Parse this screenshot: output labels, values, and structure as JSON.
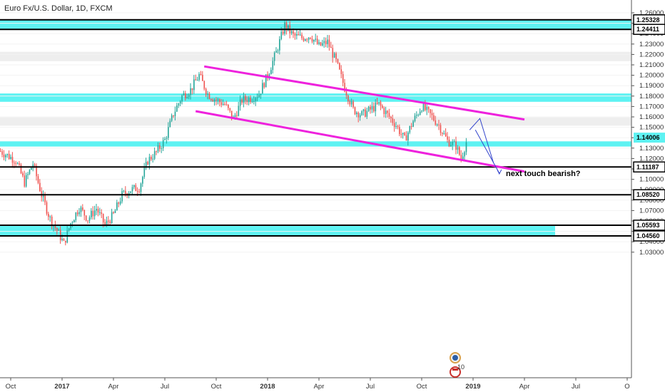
{
  "title": "Euro Fx/U.S. Dollar, 1D, FXCM",
  "chart_data": {
    "type": "candlestick",
    "title": "Euro Fx/U.S. Dollar, 1D, FXCM",
    "ylim": [
      1.025,
      1.265
    ],
    "y_ticks": [
      1.26,
      1.25,
      1.24,
      1.23,
      1.22,
      1.21,
      1.2,
      1.19,
      1.18,
      1.17,
      1.16,
      1.15,
      1.14,
      1.13,
      1.12,
      1.11,
      1.1,
      1.09,
      1.08,
      1.07,
      1.06,
      1.05,
      1.04,
      1.03
    ],
    "x_ticks": [
      {
        "label": "Oct",
        "x": 0,
        "bold": false
      },
      {
        "label": "2017",
        "x": 3,
        "bold": true
      },
      {
        "label": "Apr",
        "x": 6,
        "bold": false
      },
      {
        "label": "Jul",
        "x": 9,
        "bold": false
      },
      {
        "label": "Oct",
        "x": 12,
        "bold": false
      },
      {
        "label": "2018",
        "x": 15,
        "bold": true
      },
      {
        "label": "Apr",
        "x": 18,
        "bold": false
      },
      {
        "label": "Jul",
        "x": 21,
        "bold": false
      },
      {
        "label": "Oct",
        "x": 24,
        "bold": false
      },
      {
        "label": "2019",
        "x": 27,
        "bold": true
      },
      {
        "label": "Apr",
        "x": 30,
        "bold": false
      },
      {
        "label": "Jul",
        "x": 33,
        "bold": false
      },
      {
        "label": "O",
        "x": 36,
        "bold": false
      }
    ],
    "price_path": [
      [
        -0.6,
        1.127
      ],
      [
        0.3,
        1.118
      ],
      [
        0.8,
        1.097
      ],
      [
        1.3,
        1.115
      ],
      [
        1.8,
        1.085
      ],
      [
        2.3,
        1.062
      ],
      [
        2.8,
        1.048
      ],
      [
        3.1,
        1.038
      ],
      [
        3.5,
        1.058
      ],
      [
        4.0,
        1.073
      ],
      [
        4.5,
        1.062
      ],
      [
        5.0,
        1.072
      ],
      [
        5.5,
        1.056
      ],
      [
        6.0,
        1.066
      ],
      [
        6.5,
        1.085
      ],
      [
        7.0,
        1.09
      ],
      [
        7.5,
        1.092
      ],
      [
        8.0,
        1.118
      ],
      [
        8.5,
        1.126
      ],
      [
        9.0,
        1.138
      ],
      [
        9.5,
        1.163
      ],
      [
        10.0,
        1.18
      ],
      [
        10.5,
        1.186
      ],
      [
        11.0,
        1.2
      ],
      [
        11.5,
        1.182
      ],
      [
        12.0,
        1.176
      ],
      [
        12.5,
        1.172
      ],
      [
        13.0,
        1.158
      ],
      [
        13.5,
        1.176
      ],
      [
        14.0,
        1.178
      ],
      [
        14.5,
        1.182
      ],
      [
        15.0,
        1.2
      ],
      [
        15.5,
        1.222
      ],
      [
        16.0,
        1.248
      ],
      [
        16.5,
        1.238
      ],
      [
        17.0,
        1.236
      ],
      [
        17.5,
        1.238
      ],
      [
        18.0,
        1.228
      ],
      [
        18.5,
        1.232
      ],
      [
        19.0,
        1.213
      ],
      [
        19.5,
        1.188
      ],
      [
        20.0,
        1.167
      ],
      [
        20.5,
        1.162
      ],
      [
        21.0,
        1.167
      ],
      [
        21.5,
        1.172
      ],
      [
        22.0,
        1.162
      ],
      [
        22.5,
        1.152
      ],
      [
        23.0,
        1.138
      ],
      [
        23.5,
        1.156
      ],
      [
        24.0,
        1.17
      ],
      [
        24.5,
        1.162
      ],
      [
        25.0,
        1.152
      ],
      [
        25.5,
        1.137
      ],
      [
        26.0,
        1.132
      ],
      [
        26.3,
        1.12
      ],
      [
        26.7,
        1.141
      ]
    ],
    "zones": [
      {
        "from": 1.2441,
        "to": 1.2533,
        "color": "#5ef2f2"
      },
      {
        "from": 1.2135,
        "to": 1.2225,
        "color": "#eeeeee"
      },
      {
        "from": 1.1745,
        "to": 1.1825,
        "color": "#5ef2f2"
      },
      {
        "from": 1.1515,
        "to": 1.1595,
        "color": "#eeeeee"
      },
      {
        "from": 1.1315,
        "to": 1.1365,
        "color": "#5ef2f2"
      },
      {
        "from": 1.0456,
        "to": 1.0559,
        "color": "#5ef2f2"
      }
    ],
    "levels": [
      1.25328,
      1.24411,
      1.11187,
      1.0852,
      1.05593,
      1.0456
    ],
    "current_price": 1.14006,
    "price_tags": [
      "1.25328",
      "1.24411",
      "1.14006",
      "1.11187",
      "1.08520",
      "1.05593",
      "1.04560"
    ],
    "channel_lines": [
      {
        "from": [
          11.3,
          1.2085
        ],
        "to": [
          30.0,
          1.1575
        ],
        "color": "#ee22dd"
      },
      {
        "from": [
          10.8,
          1.1655
        ],
        "to": [
          30.0,
          1.1075
        ],
        "color": "#ee22dd"
      }
    ],
    "projection_arrows": [
      {
        "points": [
          [
            26.8,
            1.1475
          ],
          [
            27.4,
            1.1585
          ],
          [
            28.2,
            1.1155
          ]
        ],
        "color": "#3344cc"
      }
    ],
    "annotation": "next touch bearish?",
    "event_badge": {
      "count": "10",
      "colors": [
        "#2d5ea6",
        "#c9302c"
      ]
    },
    "colors": {
      "up": "#26a69a",
      "down": "#ef5350",
      "channel": "#ee22dd",
      "arrow": "#3344cc",
      "price_tag": "#5ef2f2"
    }
  }
}
